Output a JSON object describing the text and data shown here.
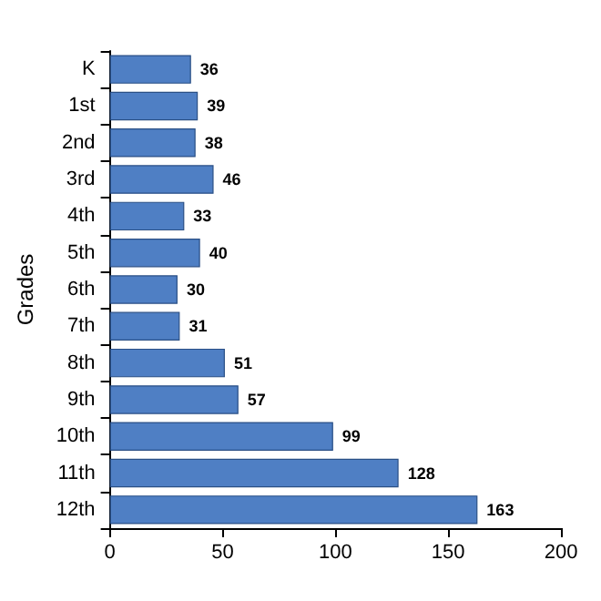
{
  "chart_data": {
    "type": "bar",
    "orientation": "horizontal",
    "ylabel": "Grades",
    "categories": [
      "K",
      "1st",
      "2nd",
      "3rd",
      "4th",
      "5th",
      "6th",
      "7th",
      "8th",
      "9th",
      "10th",
      "11th",
      "12th"
    ],
    "values": [
      36,
      39,
      38,
      46,
      33,
      40,
      30,
      31,
      51,
      57,
      99,
      128,
      163
    ],
    "color": "#4f7fc4",
    "xlim": [
      0,
      200
    ],
    "xticks": [
      0,
      50,
      100,
      150,
      200
    ],
    "data_labels": true
  }
}
